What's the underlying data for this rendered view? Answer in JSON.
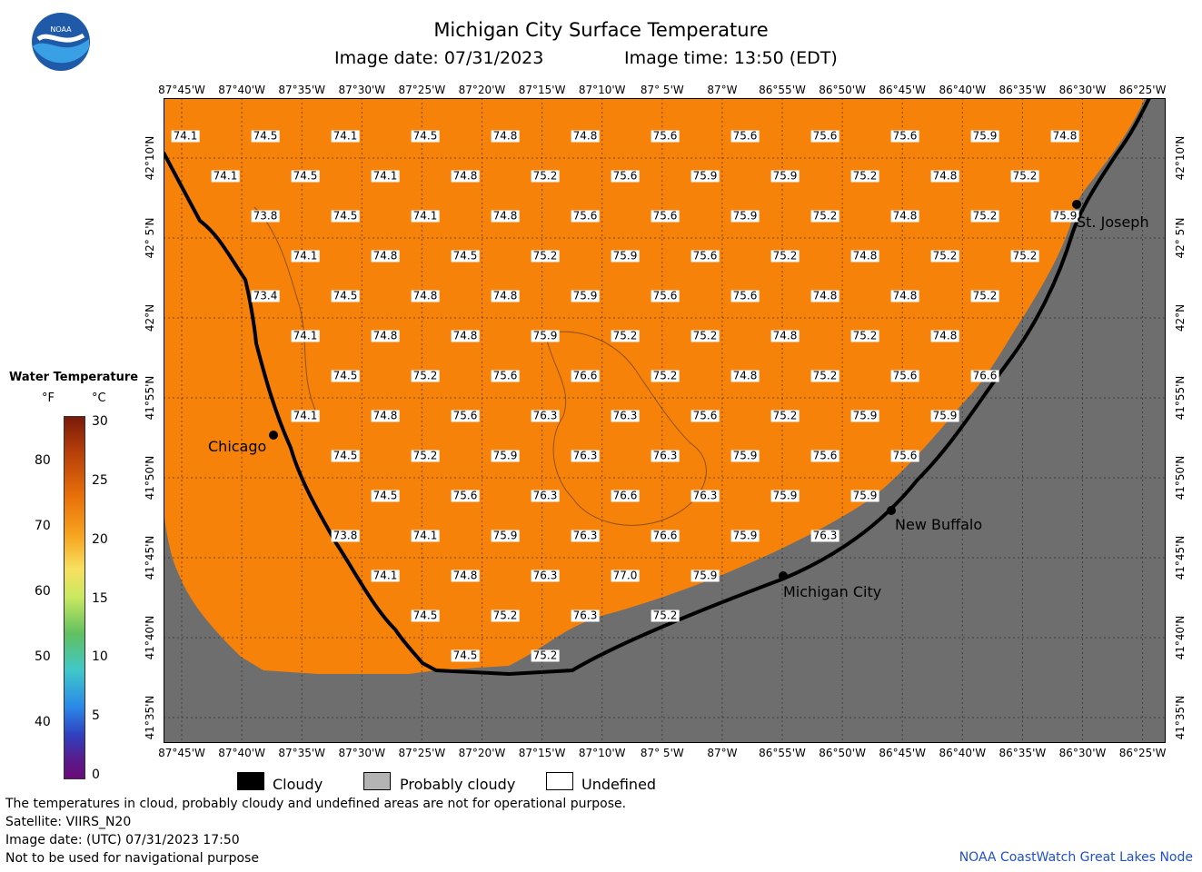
{
  "title": "Michigan City Surface Temperature",
  "image_date_label": "Image date: 07/31/2023",
  "image_time_label": "Image time: 13:50 (EDT)",
  "logo_text": "NOAA",
  "longitude_ticks": [
    "87°45'W",
    "87°40'W",
    "87°35'W",
    "87°30'W",
    "87°25'W",
    "87°20'W",
    "87°15'W",
    "87°10'W",
    "87° 5'W",
    "87°W",
    "86°55'W",
    "86°50'W",
    "86°45'W",
    "86°40'W",
    "86°35'W",
    "86°30'W",
    "86°25'W"
  ],
  "latitude_ticks": [
    "42°10'N",
    "42° 5'N",
    "42°N",
    "41°55'N",
    "41°50'N",
    "41°45'N",
    "41°40'N",
    "41°35'N"
  ],
  "cities": [
    {
      "name": "Chicago"
    },
    {
      "name": "St. Joseph"
    },
    {
      "name": "New Buffalo"
    },
    {
      "name": "Michigan City"
    }
  ],
  "temperatures": [
    [
      "74.1",
      "74.5",
      "74.1",
      "74.5",
      "74.8",
      "74.8",
      "75.6",
      "75.6",
      "75.6",
      "75.6",
      "75.9",
      "74.8"
    ],
    [
      "74.1",
      "74.5",
      "74.1",
      "74.8",
      "75.2",
      "75.6",
      "75.9",
      "75.9",
      "75.2",
      "74.8",
      "75.2"
    ],
    [
      "73.8",
      "74.5",
      "74.1",
      "74.8",
      "75.6",
      "75.6",
      "75.9",
      "75.2",
      "74.8",
      "75.2",
      "75.9"
    ],
    [
      "74.1",
      "74.8",
      "74.5",
      "75.2",
      "75.9",
      "75.6",
      "75.2",
      "74.8",
      "75.2",
      "75.2"
    ],
    [
      "73.4",
      "74.5",
      "74.8",
      "74.8",
      "75.9",
      "75.6",
      "75.6",
      "74.8",
      "74.8",
      "75.2"
    ],
    [
      "74.1",
      "74.8",
      "74.8",
      "75.9",
      "75.2",
      "75.2",
      "74.8",
      "75.2",
      "74.8"
    ],
    [
      "74.5",
      "75.2",
      "75.6",
      "76.6",
      "75.2",
      "74.8",
      "75.2",
      "75.6",
      "76.6"
    ],
    [
      "74.1",
      "74.8",
      "75.6",
      "76.3",
      "76.3",
      "75.6",
      "75.2",
      "75.9",
      "75.9"
    ],
    [
      "74.5",
      "75.2",
      "75.9",
      "76.3",
      "76.3",
      "75.9",
      "75.6",
      "75.6"
    ],
    [
      "74.5",
      "75.6",
      "76.3",
      "76.6",
      "76.3",
      "75.9",
      "75.9"
    ],
    [
      "73.8",
      "74.1",
      "75.9",
      "76.3",
      "76.6",
      "75.9",
      "76.3"
    ],
    [
      "74.1",
      "74.8",
      "76.3",
      "77.0",
      "75.9"
    ],
    [
      "74.5",
      "75.2",
      "76.3",
      "75.2"
    ],
    [
      "74.5",
      "75.2"
    ]
  ],
  "legend": {
    "title": "Water Temperature",
    "unit_f": "°F",
    "unit_c": "°C",
    "f_ticks": [
      "80",
      "70",
      "60",
      "50",
      "40"
    ],
    "c_ticks": [
      "30",
      "25",
      "20",
      "15",
      "10",
      "5",
      "0"
    ],
    "range_f": [
      32,
      86
    ],
    "range_c": [
      0,
      30
    ]
  },
  "key": [
    {
      "label": "Cloudy",
      "color": "#000000"
    },
    {
      "label": "Probably cloudy",
      "color": "#b4b4b4"
    },
    {
      "label": "Undefined",
      "color": "#ffffff"
    }
  ],
  "footer": {
    "line1": "The temperatures in cloud, probably cloudy and undefined areas are not for operational purpose.",
    "line2": "Satellite: VIIRS_N20",
    "line3": "Image date: (UTC) 07/31/2023  17:50",
    "line4": "Not to be used for navigational purpose",
    "credit": "NOAA CoastWatch Great Lakes Node"
  },
  "colors": {
    "water": "#f7820a",
    "land": "#6e6e6e",
    "shore": "#000000",
    "credit": "#1f4fd1"
  }
}
